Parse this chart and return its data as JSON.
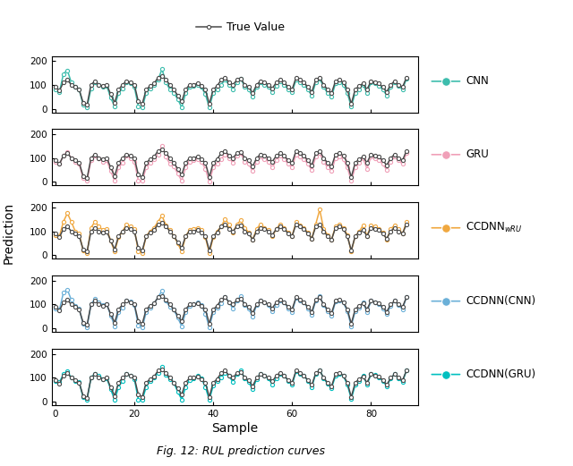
{
  "true_values": [
    90,
    75,
    110,
    120,
    100,
    90,
    80,
    25,
    15,
    100,
    115,
    100,
    95,
    100,
    60,
    25,
    80,
    100,
    115,
    110,
    100,
    30,
    20,
    80,
    95,
    105,
    130,
    135,
    120,
    100,
    80,
    55,
    30,
    80,
    100,
    100,
    105,
    95,
    80,
    20,
    80,
    95,
    120,
    130,
    110,
    100,
    120,
    125,
    100,
    90,
    65,
    100,
    115,
    110,
    100,
    85,
    110,
    120,
    110,
    90,
    80,
    130,
    120,
    110,
    90,
    70,
    120,
    130,
    100,
    80,
    65,
    115,
    120,
    110,
    80,
    20,
    80,
    95,
    105,
    80,
    115,
    110,
    105,
    90,
    70,
    100,
    115,
    100,
    90,
    130
  ],
  "cnn_pred": [
    80,
    70,
    145,
    160,
    110,
    90,
    80,
    15,
    5,
    85,
    110,
    100,
    90,
    95,
    45,
    10,
    65,
    85,
    110,
    105,
    90,
    10,
    5,
    65,
    85,
    100,
    120,
    165,
    110,
    80,
    65,
    40,
    5,
    65,
    90,
    95,
    100,
    90,
    60,
    5,
    65,
    80,
    100,
    120,
    100,
    80,
    110,
    125,
    90,
    80,
    50,
    90,
    110,
    100,
    90,
    70,
    95,
    115,
    100,
    80,
    70,
    120,
    110,
    100,
    80,
    55,
    110,
    125,
    90,
    65,
    50,
    105,
    110,
    100,
    65,
    8,
    65,
    82,
    100,
    65,
    110,
    105,
    95,
    80,
    55,
    90,
    110,
    95,
    80,
    125
  ],
  "gru_pred": [
    85,
    75,
    110,
    125,
    100,
    85,
    75,
    15,
    5,
    90,
    110,
    100,
    85,
    90,
    45,
    5,
    60,
    80,
    110,
    100,
    85,
    5,
    5,
    60,
    80,
    95,
    115,
    150,
    105,
    75,
    65,
    35,
    5,
    60,
    85,
    90,
    95,
    85,
    55,
    0,
    60,
    75,
    95,
    115,
    100,
    80,
    110,
    120,
    85,
    75,
    45,
    85,
    105,
    95,
    85,
    60,
    90,
    110,
    95,
    75,
    60,
    115,
    105,
    95,
    75,
    50,
    105,
    120,
    85,
    60,
    45,
    100,
    105,
    95,
    60,
    5,
    60,
    80,
    98,
    55,
    105,
    100,
    90,
    75,
    50,
    85,
    105,
    90,
    75,
    120
  ],
  "ccdnn_wru_pred": [
    85,
    80,
    140,
    175,
    140,
    100,
    90,
    20,
    10,
    115,
    140,
    120,
    105,
    110,
    60,
    15,
    75,
    100,
    130,
    120,
    110,
    15,
    10,
    80,
    100,
    115,
    140,
    165,
    125,
    105,
    80,
    50,
    15,
    80,
    105,
    110,
    115,
    105,
    75,
    10,
    75,
    100,
    120,
    150,
    130,
    95,
    130,
    145,
    115,
    95,
    65,
    110,
    130,
    115,
    105,
    80,
    110,
    130,
    115,
    95,
    80,
    140,
    125,
    115,
    95,
    70,
    130,
    190,
    110,
    85,
    65,
    120,
    130,
    115,
    85,
    15,
    80,
    98,
    125,
    80,
    125,
    120,
    110,
    95,
    65,
    110,
    125,
    110,
    90,
    140
  ],
  "ccdnn_cnn_pred": [
    82,
    78,
    150,
    162,
    120,
    95,
    82,
    18,
    5,
    100,
    125,
    110,
    98,
    100,
    55,
    10,
    68,
    88,
    118,
    112,
    98,
    12,
    5,
    68,
    88,
    105,
    130,
    158,
    115,
    90,
    78,
    45,
    10,
    68,
    95,
    100,
    108,
    98,
    62,
    5,
    68,
    88,
    105,
    132,
    110,
    82,
    118,
    135,
    98,
    82,
    50,
    98,
    118,
    108,
    98,
    72,
    98,
    118,
    108,
    85,
    68,
    128,
    118,
    108,
    85,
    58,
    118,
    135,
    98,
    72,
    52,
    112,
    118,
    108,
    72,
    10,
    72,
    88,
    108,
    68,
    115,
    110,
    100,
    85,
    60,
    95,
    115,
    98,
    80,
    132
  ],
  "ccdnn_gru_pred": [
    87,
    82,
    115,
    128,
    100,
    88,
    82,
    18,
    10,
    100,
    118,
    108,
    96,
    98,
    52,
    8,
    62,
    88,
    115,
    108,
    95,
    10,
    8,
    62,
    88,
    100,
    122,
    145,
    112,
    95,
    80,
    42,
    10,
    62,
    92,
    98,
    108,
    98,
    62,
    8,
    68,
    88,
    102,
    120,
    108,
    82,
    118,
    130,
    98,
    82,
    52,
    96,
    118,
    108,
    98,
    72,
    98,
    118,
    108,
    88,
    70,
    128,
    115,
    108,
    88,
    62,
    118,
    132,
    98,
    75,
    58,
    108,
    118,
    108,
    72,
    12,
    70,
    88,
    110,
    72,
    115,
    112,
    102,
    88,
    65,
    98,
    115,
    98,
    82,
    132
  ],
  "true_color": "#4A4A4A",
  "cnn_color": "#3DBDAD",
  "gru_color": "#F0A0B8",
  "ccdnn_wru_color": "#F0A840",
  "ccdnn_cnn_color": "#6BB0D8",
  "ccdnn_gru_color": "#00C0C0",
  "subplot_labels": [
    "CNN",
    "GRU",
    "CCDNN$_{wRU}$",
    "CCDNN(CNN)",
    "CCDNN(GRU)"
  ],
  "ylabel": "Prediction",
  "xlabel": "Sample",
  "caption": "Fig. 12: RUL prediction curves",
  "legend_label": "True Value",
  "yticks": [
    0,
    100,
    200
  ],
  "ylim": [
    -15,
    220
  ],
  "xticks": [
    0,
    20,
    40,
    60,
    80
  ],
  "xlim": [
    -1,
    92
  ]
}
